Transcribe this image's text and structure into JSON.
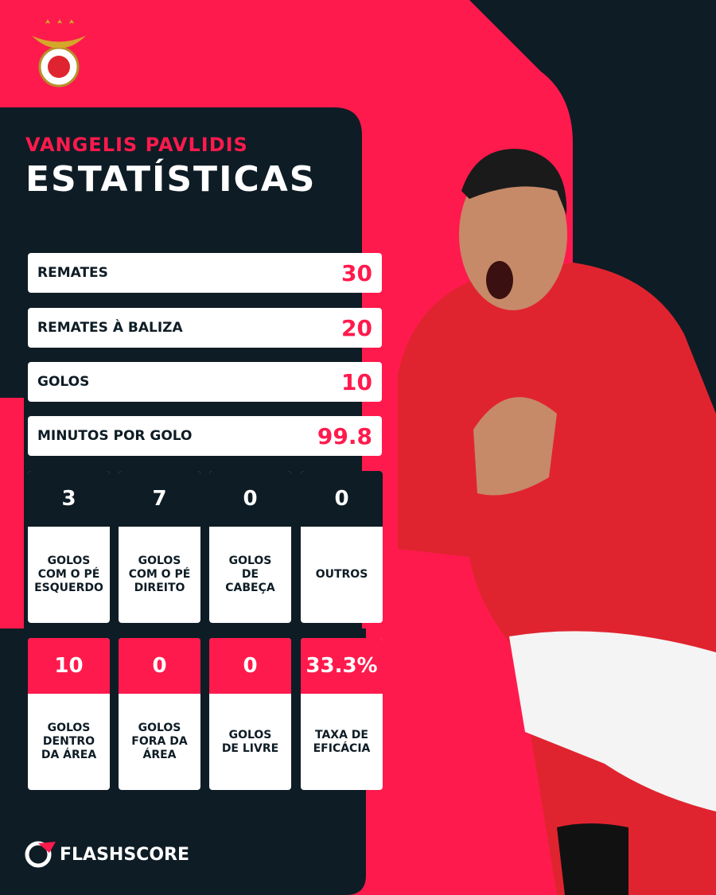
{
  "header": {
    "player": "VANGELIS PAVLIDIS",
    "title": "ESTATÍSTICAS"
  },
  "stat_rows": [
    {
      "label": "REMATES",
      "value": "30"
    },
    {
      "label": "REMATES À BALIZA",
      "value": "20"
    },
    {
      "label": "GOLOS",
      "value": "10"
    },
    {
      "label": "MINUTOS POR GOLO",
      "value": "99.8"
    }
  ],
  "tile_rows": [
    [
      {
        "value": "3",
        "label": "GOLOS COM O PÉ ESQUERDO"
      },
      {
        "value": "7",
        "label": "GOLOS COM O PÉ DIREITO"
      },
      {
        "value": "0",
        "label": "GOLOS DE CABEÇA"
      },
      {
        "value": "0",
        "label": "OUTROS"
      }
    ],
    [
      {
        "value": "10",
        "label": "GOLOS DENTRO DA ÁREA"
      },
      {
        "value": "0",
        "label": "GOLOS FORA DA ÁREA"
      },
      {
        "value": "0",
        "label": "GOLOS DE LIVRE"
      },
      {
        "value": "33.3%",
        "label": "TAXA DE EFICÁCIA"
      }
    ]
  ],
  "footer": {
    "brand": "FLASHSCORE"
  }
}
